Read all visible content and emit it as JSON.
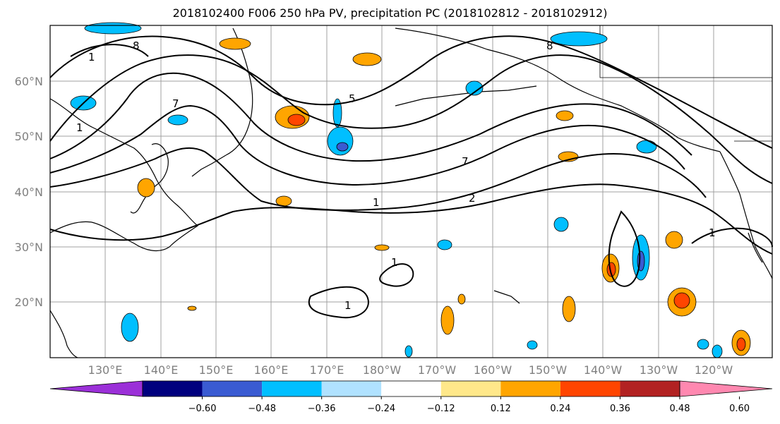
{
  "title": "2018102400 F006 250 hPa PV, precipitation PC (2018102812 - 2018102912)",
  "map": {
    "lat_labels": [
      "60°N",
      "50°N",
      "40°N",
      "30°N",
      "20°N"
    ],
    "lon_labels": [
      "130°E",
      "140°E",
      "150°E",
      "160°E",
      "170°E",
      "180°W",
      "170°W",
      "160°W",
      "150°W",
      "140°W",
      "130°W",
      "120°W"
    ],
    "contour_labels": [
      "1",
      "8",
      "5",
      "7",
      "1",
      "2",
      "1",
      "1",
      "8",
      "7",
      "1",
      "1"
    ]
  },
  "colorbar": {
    "colors": [
      "#9b30d8",
      "#00007e",
      "#3a5bd2",
      "#00bfff",
      "#b0e2ff",
      "#ffffff",
      "#ffe88a",
      "#ffa500",
      "#ff4500",
      "#b22222",
      "#ff88b0"
    ],
    "tick_labels": [
      "−0.60",
      "−0.48",
      "−0.36",
      "−0.24",
      "−0.12",
      "0.12",
      "0.24",
      "0.36",
      "0.48",
      "0.60"
    ]
  }
}
